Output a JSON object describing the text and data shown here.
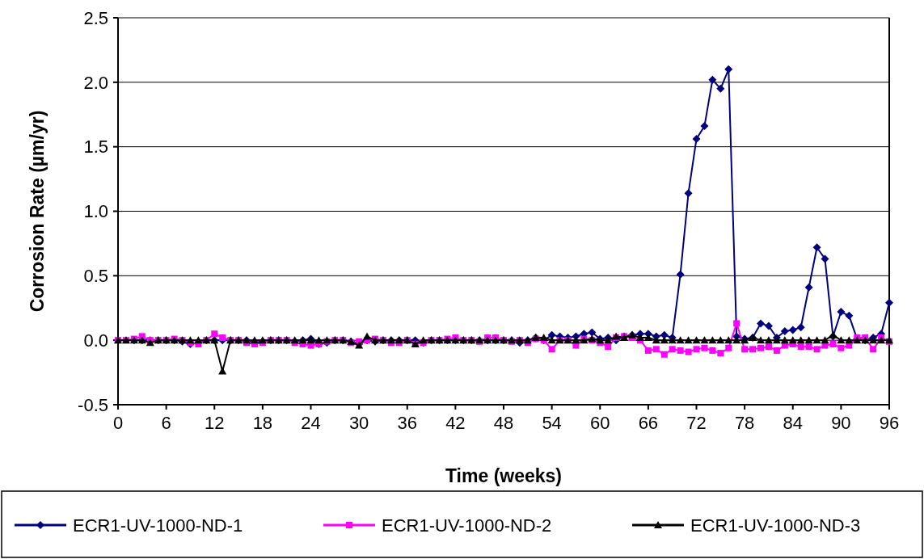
{
  "chart_data": {
    "type": "line",
    "xlabel": "Time (weeks)",
    "ylabel": "Corrosion Rate (µm/yr)",
    "x": [
      0,
      1,
      2,
      3,
      4,
      5,
      6,
      7,
      8,
      9,
      10,
      11,
      12,
      13,
      14,
      15,
      16,
      17,
      18,
      19,
      20,
      21,
      22,
      23,
      24,
      25,
      26,
      27,
      28,
      29,
      30,
      31,
      32,
      33,
      34,
      35,
      36,
      37,
      38,
      39,
      40,
      41,
      42,
      43,
      44,
      45,
      46,
      47,
      48,
      49,
      50,
      51,
      52,
      53,
      54,
      55,
      56,
      57,
      58,
      59,
      60,
      61,
      62,
      63,
      64,
      65,
      66,
      67,
      68,
      69,
      70,
      71,
      72,
      73,
      74,
      75,
      76,
      77,
      78,
      79,
      80,
      81,
      82,
      83,
      84,
      85,
      86,
      87,
      88,
      89,
      90,
      91,
      92,
      93,
      94,
      95,
      96
    ],
    "series": [
      {
        "name": "ECR1-UV-1000-ND-1",
        "color": "#000080",
        "marker": "diamond",
        "values": [
          null,
          null,
          0,
          0,
          0,
          0,
          0,
          0,
          -0.01,
          -0.03,
          -0.02,
          0,
          0,
          0,
          0,
          0,
          0,
          -0.02,
          -0.01,
          0,
          0,
          0,
          -0.01,
          0,
          0.01,
          -0.03,
          -0.02,
          0,
          0,
          -0.01,
          -0.03,
          0,
          -0.01,
          0,
          0,
          0,
          0,
          0,
          -0.02,
          0,
          0,
          0,
          0,
          0,
          0,
          0,
          0,
          0,
          0,
          0,
          -0.02,
          0,
          0.02,
          0,
          0.04,
          0.03,
          0.02,
          0.03,
          0.05,
          0.06,
          0.01,
          0.02,
          0,
          0.03,
          0.04,
          0.05,
          0.05,
          0.03,
          0.04,
          0.02,
          0.51,
          1.14,
          1.56,
          1.66,
          2.02,
          1.95,
          2.1,
          0.03,
          0.01,
          0.02,
          0.13,
          0.11,
          0.02,
          0.07,
          0.08,
          0.1,
          0.41,
          0.72,
          0.63,
          0.03,
          0.22,
          0.19,
          0.01,
          0,
          0.02,
          0.05,
          0.29
        ]
      },
      {
        "name": "ECR1-UV-1000-ND-2",
        "color": "#ff00ff",
        "marker": "square",
        "values": [
          0,
          0,
          0.01,
          0.03,
          0,
          0,
          0,
          0.01,
          0,
          -0.02,
          -0.03,
          0,
          0.05,
          0.02,
          0,
          0,
          -0.02,
          -0.03,
          -0.02,
          0,
          0,
          0,
          -0.02,
          -0.03,
          -0.04,
          -0.03,
          -0.01,
          0,
          0,
          -0.02,
          -0.01,
          0,
          0.01,
          0,
          -0.02,
          -0.02,
          0,
          -0.03,
          -0.02,
          0,
          0,
          0.01,
          0.02,
          0,
          0,
          -0.01,
          0.02,
          0.02,
          0,
          -0.01,
          0,
          -0.02,
          0.01,
          0,
          -0.07,
          0,
          0,
          -0.04,
          0.01,
          0,
          -0.02,
          -0.05,
          0.02,
          0.03,
          0.02,
          0,
          -0.08,
          -0.07,
          -0.11,
          -0.07,
          -0.08,
          -0.09,
          -0.07,
          -0.06,
          -0.08,
          -0.1,
          -0.06,
          0.13,
          -0.07,
          -0.07,
          -0.06,
          -0.05,
          -0.08,
          -0.04,
          -0.03,
          -0.05,
          -0.05,
          -0.07,
          -0.04,
          -0.03,
          -0.06,
          -0.04,
          0.02,
          0.02,
          -0.07,
          0.02,
          -0.01
        ]
      },
      {
        "name": "ECR1-UV-1000-ND-3",
        "color": "#000000",
        "marker": "triangle",
        "values": [
          0,
          0,
          0,
          0,
          -0.02,
          0,
          0,
          0,
          0,
          0,
          0,
          0,
          0,
          -0.24,
          0,
          0,
          0,
          0,
          0,
          0,
          0,
          0,
          0,
          0,
          0,
          0,
          0,
          0,
          0,
          -0.01,
          -0.04,
          0.03,
          0,
          0,
          0,
          0,
          0,
          -0.03,
          0,
          0,
          0,
          0,
          0,
          0,
          0,
          0,
          0,
          0,
          0,
          0,
          0,
          0,
          0.02,
          0.02,
          0,
          0,
          0,
          0,
          0,
          0.01,
          0,
          0,
          0.03,
          0.02,
          0.04,
          0.02,
          0.02,
          0,
          0,
          0,
          0,
          0,
          0,
          0,
          0,
          0,
          0,
          0,
          0,
          0.02,
          0,
          0,
          0,
          0,
          0,
          0,
          0,
          0,
          0,
          0.04,
          0,
          0,
          0,
          0,
          0,
          0,
          0
        ]
      }
    ],
    "xlim": [
      0,
      96
    ],
    "xticks": [
      0,
      6,
      12,
      18,
      24,
      30,
      36,
      42,
      48,
      54,
      60,
      66,
      72,
      78,
      84,
      90,
      96
    ],
    "ylim": [
      -0.5,
      2.5
    ],
    "yticks": [
      {
        "value": -0.5,
        "label": "-0.5"
      },
      {
        "value": 0,
        "label": "0.0"
      },
      {
        "value": 0.5,
        "label": "0.5"
      },
      {
        "value": 1,
        "label": "1.0"
      },
      {
        "value": 1.5,
        "label": "1.5"
      },
      {
        "value": 2,
        "label": "2.0"
      },
      {
        "value": 2.5,
        "label": "2.5"
      }
    ],
    "grid": "y",
    "legend": "bottom",
    "line_style": "solid"
  }
}
